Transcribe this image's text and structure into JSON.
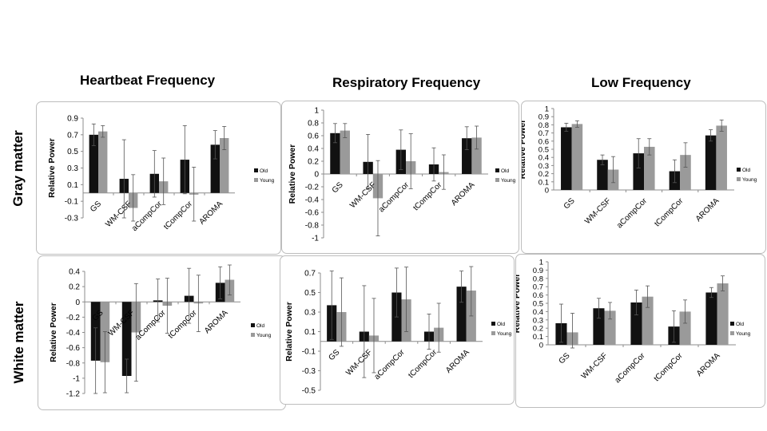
{
  "columns": [
    "Heartbeat Frequency",
    "Respiratory Frequency",
    "Low Frequency"
  ],
  "rows": [
    "Gray matter",
    "White matter"
  ],
  "chart_data": [
    {
      "type": "bar",
      "row": "Gray matter",
      "column": "Heartbeat Frequency",
      "ylabel": "Relative Power",
      "categories": [
        "GS",
        "WM-CSF",
        "aCompCor",
        "tCompCor",
        "AROMA"
      ],
      "yticks": [
        0.9,
        0.7,
        0.5,
        0.3,
        0.1,
        -0.1,
        -0.3
      ],
      "ylim": [
        -0.3,
        0.9
      ],
      "series": [
        {
          "name": "Old",
          "values": [
            0.7,
            0.17,
            0.23,
            0.4,
            0.58
          ],
          "errors": [
            0.13,
            0.47,
            0.28,
            0.41,
            0.17
          ]
        },
        {
          "name": "Young",
          "values": [
            0.74,
            -0.18,
            0.14,
            -0.02,
            0.66
          ],
          "errors": [
            0.07,
            0.4,
            0.28,
            0.33,
            0.14
          ]
        }
      ]
    },
    {
      "type": "bar",
      "row": "Gray matter",
      "column": "Respiratory Frequency",
      "ylabel": "Relative Power",
      "categories": [
        "GS",
        "WM-CSF",
        "aCompCor",
        "tCompCor",
        "AROMA"
      ],
      "yticks": [
        1,
        0.8,
        0.6,
        0.4,
        0.2,
        0,
        -0.2,
        -0.4,
        -0.6,
        -0.8,
        -1
      ],
      "ylim": [
        -1,
        1
      ],
      "series": [
        {
          "name": "Old",
          "values": [
            0.64,
            0.19,
            0.38,
            0.15,
            0.56
          ],
          "errors": [
            0.15,
            0.43,
            0.31,
            0.26,
            0.18
          ]
        },
        {
          "name": "Young",
          "values": [
            0.68,
            -0.38,
            0.2,
            0.03,
            0.57
          ],
          "errors": [
            0.11,
            0.59,
            0.43,
            0.27,
            0.18
          ]
        }
      ]
    },
    {
      "type": "bar",
      "row": "Gray matter",
      "column": "Low Frequency",
      "ylabel": "Relative Power",
      "categories": [
        "GS",
        "WM-CSF",
        "aCompCor",
        "tCompCor",
        "AROMA"
      ],
      "yticks": [
        1,
        0.9,
        0.8,
        0.7,
        0.6,
        0.5,
        0.4,
        0.3,
        0.2,
        0.1,
        0
      ],
      "ylim": [
        0,
        1
      ],
      "series": [
        {
          "name": "Old",
          "values": [
            0.77,
            0.37,
            0.45,
            0.23,
            0.67
          ],
          "errors": [
            0.05,
            0.06,
            0.18,
            0.14,
            0.07
          ]
        },
        {
          "name": "Young",
          "values": [
            0.81,
            0.25,
            0.53,
            0.43,
            0.79
          ],
          "errors": [
            0.04,
            0.16,
            0.1,
            0.15,
            0.07
          ]
        }
      ]
    },
    {
      "type": "bar",
      "row": "White matter",
      "column": "Heartbeat Frequency",
      "ylabel": "Relative Power",
      "categories": [
        "GS",
        "WM-CSF",
        "aCompCor",
        "tCompCor",
        "AROMA"
      ],
      "yticks": [
        0.4,
        0.2,
        0,
        -0.2,
        -0.4,
        -0.6,
        -0.8,
        -1,
        -1.2
      ],
      "ylim": [
        -1.2,
        0.4
      ],
      "series": [
        {
          "name": "Old",
          "values": [
            -0.77,
            -0.97,
            0.02,
            0.08,
            0.25
          ],
          "errors": [
            0.43,
            0.22,
            0.28,
            0.36,
            0.21
          ]
        },
        {
          "name": "Young",
          "values": [
            -0.79,
            -0.4,
            -0.05,
            -0.02,
            0.29
          ],
          "errors": [
            0.4,
            0.64,
            0.36,
            0.37,
            0.2
          ]
        }
      ]
    },
    {
      "type": "bar",
      "row": "White matter",
      "column": "Respiratory Frequency",
      "ylabel": "Relative Power",
      "categories": [
        "GS",
        "WM-CSF",
        "aCompCor",
        "tCompCor",
        "AROMA"
      ],
      "yticks": [
        0.7,
        0.5,
        0.3,
        0.1,
        -0.1,
        -0.3,
        -0.5
      ],
      "ylim": [
        -0.5,
        0.7
      ],
      "series": [
        {
          "name": "Old",
          "values": [
            0.37,
            0.1,
            0.5,
            0.1,
            0.56
          ],
          "errors": [
            0.35,
            0.47,
            0.25,
            0.18,
            0.16
          ]
        },
        {
          "name": "Young",
          "values": [
            0.3,
            0.06,
            0.43,
            0.14,
            0.52
          ],
          "errors": [
            0.35,
            0.38,
            0.33,
            0.25,
            0.26
          ]
        }
      ]
    },
    {
      "type": "bar",
      "row": "White matter",
      "column": "Low Frequency",
      "ylabel": "Relative Power",
      "categories": [
        "GS",
        "WM-CSF",
        "aCompCor",
        "tCompCor",
        "AROMA"
      ],
      "yticks": [
        1,
        0.9,
        0.8,
        0.7,
        0.6,
        0.5,
        0.4,
        0.3,
        0.2,
        0.1,
        0
      ],
      "ylim": [
        0,
        1
      ],
      "series": [
        {
          "name": "Old",
          "values": [
            0.26,
            0.44,
            0.51,
            0.22,
            0.63
          ],
          "errors": [
            0.23,
            0.12,
            0.15,
            0.19,
            0.06
          ]
        },
        {
          "name": "Young",
          "values": [
            0.15,
            0.41,
            0.58,
            0.4,
            0.74
          ],
          "errors": [
            0.23,
            0.1,
            0.13,
            0.14,
            0.09
          ]
        }
      ]
    }
  ],
  "colors": {
    "old": "#111111",
    "young": "#9a9a9a",
    "axis": "#8c8c8c"
  }
}
